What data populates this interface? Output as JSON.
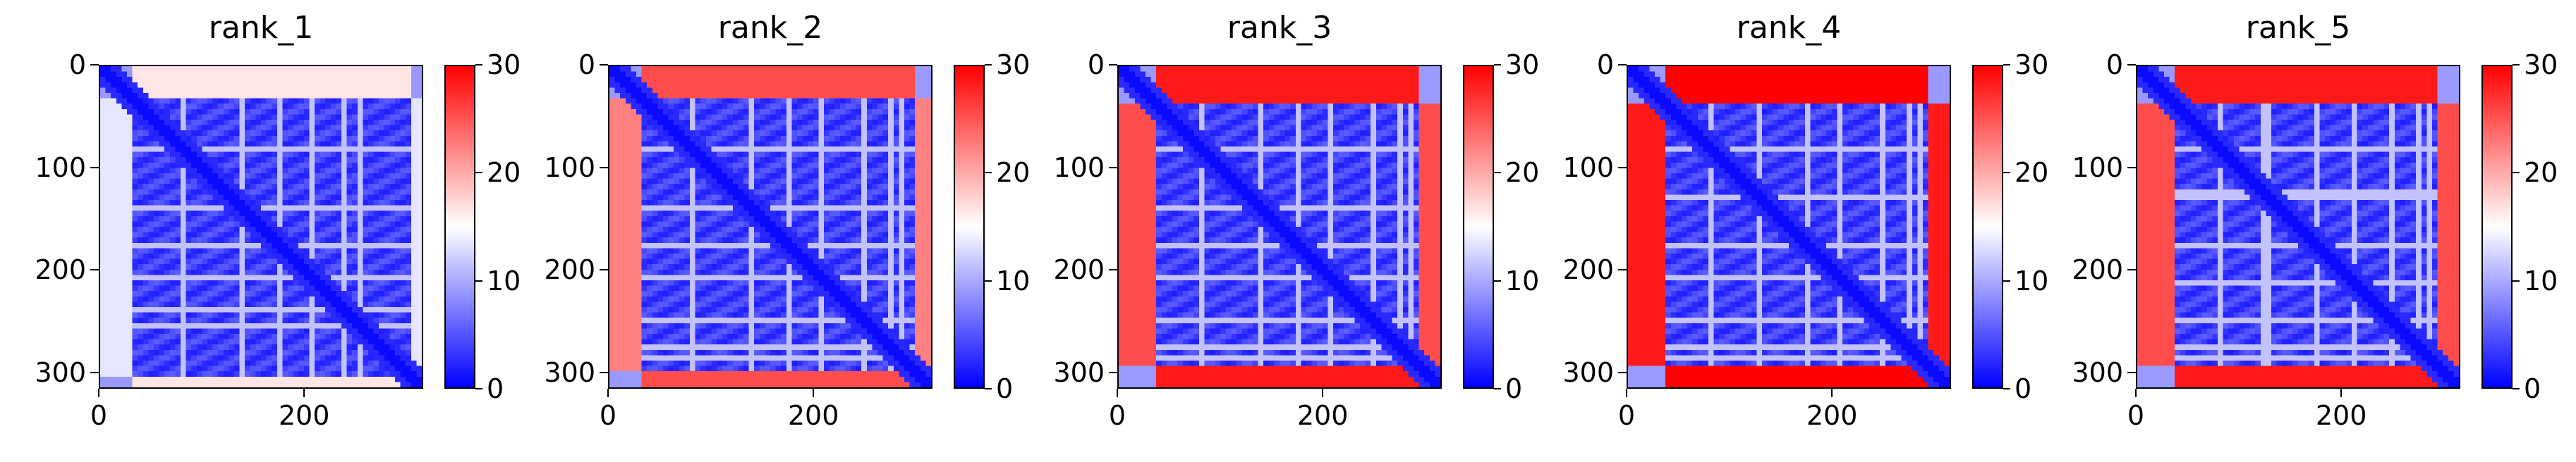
{
  "chart_data": [
    {
      "type": "heatmap",
      "title": "rank_1",
      "x_ticks": [
        "0",
        "200"
      ],
      "y_ticks": [
        "0",
        "100",
        "200",
        "300"
      ],
      "xlim": [
        0,
        316
      ],
      "ylim": [
        316,
        0
      ],
      "colorbar": {
        "ticks": [
          "0",
          "10",
          "20",
          "30"
        ],
        "range": [
          0,
          30
        ],
        "colors": [
          "#0000ff",
          "#ffffff",
          "#ff0000"
        ]
      },
      "structure": {
        "n": 316,
        "core_start": 30,
        "core_end": 305,
        "edge_level": 0.45,
        "band_rows": [
          80,
          100,
          140,
          175,
          210,
          240,
          255
        ]
      }
    },
    {
      "type": "heatmap",
      "title": "rank_2",
      "x_ticks": [
        "0",
        "200"
      ],
      "y_ticks": [
        "0",
        "100",
        "200",
        "300"
      ],
      "xlim": [
        0,
        316
      ],
      "ylim": [
        316,
        0
      ],
      "colorbar": {
        "ticks": [
          "0",
          "10",
          "20",
          "30"
        ],
        "range": [
          0,
          30
        ],
        "colors": [
          "#0000ff",
          "#ffffff",
          "#ff0000"
        ]
      },
      "structure": {
        "n": 316,
        "core_start": 30,
        "core_end": 300,
        "edge_level": 0.75,
        "band_rows": [
          80,
          100,
          140,
          175,
          210,
          250,
          275,
          285
        ]
      }
    },
    {
      "type": "heatmap",
      "title": "rank_3",
      "x_ticks": [
        "0",
        "200"
      ],
      "y_ticks": [
        "0",
        "100",
        "200",
        "300"
      ],
      "xlim": [
        0,
        316
      ],
      "ylim": [
        316,
        0
      ],
      "colorbar": {
        "ticks": [
          "0",
          "10",
          "20",
          "30"
        ],
        "range": [
          0,
          30
        ],
        "colors": [
          "#0000ff",
          "#ffffff",
          "#ff0000"
        ]
      },
      "structure": {
        "n": 316,
        "core_start": 35,
        "core_end": 295,
        "edge_level": 0.85,
        "band_rows": [
          80,
          100,
          140,
          175,
          210,
          250,
          275,
          285
        ]
      }
    },
    {
      "type": "heatmap",
      "title": "rank_4",
      "x_ticks": [
        "0",
        "200"
      ],
      "y_ticks": [
        "0",
        "100",
        "200",
        "300"
      ],
      "xlim": [
        0,
        316
      ],
      "ylim": [
        316,
        0
      ],
      "colorbar": {
        "ticks": [
          "0",
          "10",
          "20",
          "30"
        ],
        "range": [
          0,
          30
        ],
        "colors": [
          "#0000ff",
          "#ffffff",
          "#ff0000"
        ]
      },
      "structure": {
        "n": 316,
        "core_start": 35,
        "core_end": 295,
        "edge_level": 0.95,
        "band_rows": [
          80,
          100,
          130,
          175,
          210,
          250,
          275,
          285
        ]
      }
    },
    {
      "type": "heatmap",
      "title": "rank_5",
      "x_ticks": [
        "0",
        "200"
      ],
      "y_ticks": [
        "0",
        "100",
        "200",
        "300"
      ],
      "xlim": [
        0,
        316
      ],
      "ylim": [
        316,
        0
      ],
      "colorbar": {
        "ticks": [
          "0",
          "10",
          "20",
          "30"
        ],
        "range": [
          0,
          30
        ],
        "colors": [
          "#0000ff",
          "#ffffff",
          "#ff0000"
        ]
      },
      "structure": {
        "n": 316,
        "core_start": 35,
        "core_end": 295,
        "edge_level": 0.85,
        "band_rows": [
          80,
          100,
          125,
          130,
          175,
          215,
          250,
          275,
          285
        ]
      }
    }
  ]
}
